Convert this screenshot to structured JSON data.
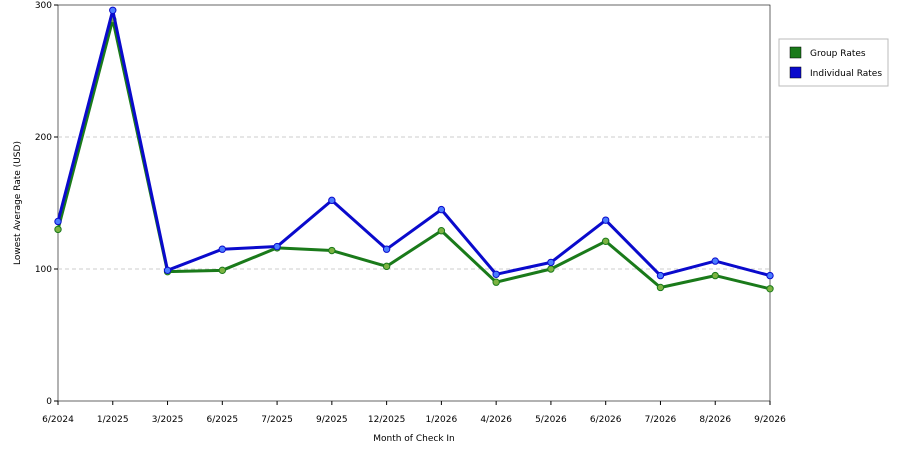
{
  "chart_data": {
    "type": "line",
    "x_label": "Month of Check In",
    "y_label": "Lowest Average Rate (USD)",
    "categories": [
      "6/2024",
      "1/2025",
      "3/2025",
      "6/2025",
      "7/2025",
      "9/2025",
      "12/2025",
      "1/2026",
      "4/2026",
      "5/2026",
      "6/2026",
      "7/2026",
      "8/2026",
      "9/2026"
    ],
    "series": [
      {
        "name": "Group Rates",
        "color": "#1a7a1a",
        "values": [
          130,
          289,
          98,
          99,
          116,
          114,
          102,
          129,
          90,
          100,
          121,
          86,
          95,
          85
        ]
      },
      {
        "name": "Individual Rates",
        "color": "#0a0acc",
        "values": [
          136,
          296,
          99,
          115,
          117,
          152,
          115,
          145,
          96,
          105,
          137,
          95,
          106,
          95
        ]
      }
    ],
    "ylim": [
      0,
      300
    ],
    "yticks": [
      0,
      100,
      200,
      300
    ],
    "grid": true,
    "legend": "top-right"
  }
}
